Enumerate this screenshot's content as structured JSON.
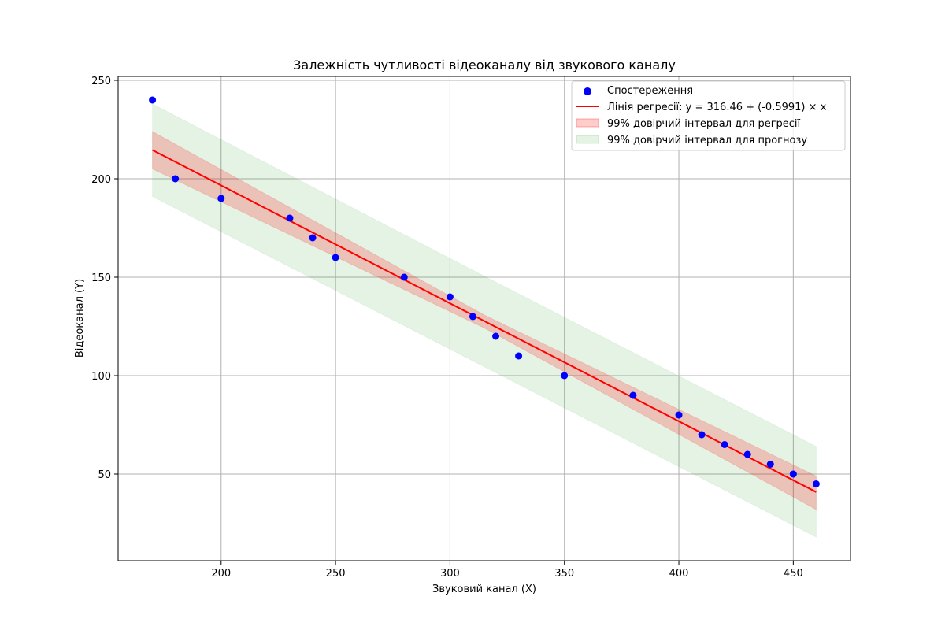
{
  "chart_data": {
    "type": "scatter",
    "title": "Залежність чутливості відеоканалу від звукового каналу",
    "xlabel": "Звуковий канал (X)",
    "ylabel": "Відеоканал (Y)",
    "xlim": [
      155,
      475
    ],
    "ylim": [
      6,
      252
    ],
    "xticks": [
      200,
      250,
      300,
      350,
      400,
      450
    ],
    "yticks": [
      50,
      100,
      150,
      200,
      250
    ],
    "grid": true,
    "legend_position": "top-right",
    "observations": {
      "name": "Спостереження",
      "color": "#0000ff",
      "x": [
        170,
        180,
        200,
        230,
        240,
        250,
        280,
        300,
        310,
        320,
        330,
        350,
        380,
        400,
        410,
        420,
        430,
        440,
        450,
        460
      ],
      "y": [
        240,
        200,
        190,
        180,
        170,
        160,
        150,
        140,
        130,
        120,
        110,
        100,
        90,
        80,
        70,
        65,
        60,
        55,
        50,
        45
      ]
    },
    "regression": {
      "name": "Лінія регресії: y = 316.46 + (-0.5991) × x",
      "color": "#ff0000",
      "intercept": 316.46,
      "slope": -0.5991,
      "x_range": [
        170,
        460
      ]
    },
    "confidence_band": {
      "name": "99% довірчий інтервал для регресії",
      "color": "#ff0000",
      "x": [
        170,
        315,
        460
      ],
      "lower": [
        205,
        124.2,
        32
      ],
      "upper": [
        224,
        130.8,
        49
      ]
    },
    "prediction_band": {
      "name": "99% довірчий інтервал для прогнозу",
      "color": "#2ca02c",
      "x": [
        170,
        315,
        460
      ],
      "lower": [
        191,
        104.5,
        18
      ],
      "upper": [
        238,
        150.5,
        64
      ]
    }
  }
}
